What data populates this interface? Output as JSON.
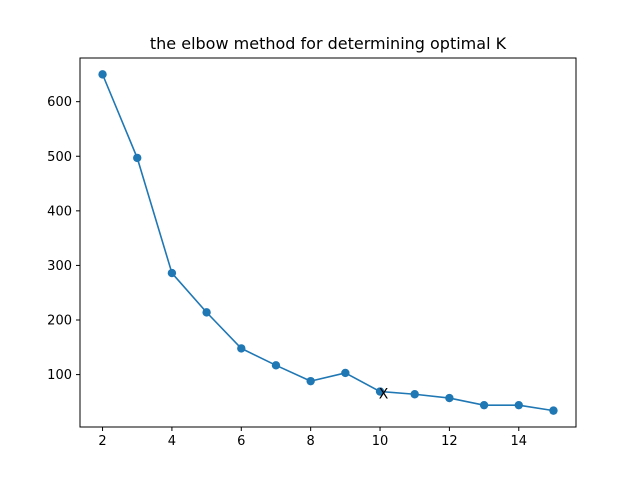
{
  "chart_data": {
    "type": "line",
    "title": "the elbow method for determining optimal K",
    "xlabel": "",
    "ylabel": "",
    "x": [
      2,
      3,
      4,
      5,
      6,
      7,
      8,
      9,
      10,
      11,
      12,
      13,
      14,
      15
    ],
    "series": [
      {
        "values": [
          650,
          497,
          286,
          214,
          148,
          117,
          88,
          103,
          69,
          64,
          57,
          44,
          44,
          34
        ],
        "color": "#1f77b4",
        "marker": "circle"
      }
    ],
    "xlim": [
      1.35,
      15.65
    ],
    "ylim": [
      4,
      680
    ],
    "xticks": [
      2,
      4,
      6,
      8,
      10,
      12,
      14
    ],
    "yticks": [
      100,
      200,
      300,
      400,
      500,
      600
    ],
    "grid": false,
    "annotations": [
      {
        "text": "X",
        "x": 10.1,
        "y": 65
      }
    ]
  }
}
